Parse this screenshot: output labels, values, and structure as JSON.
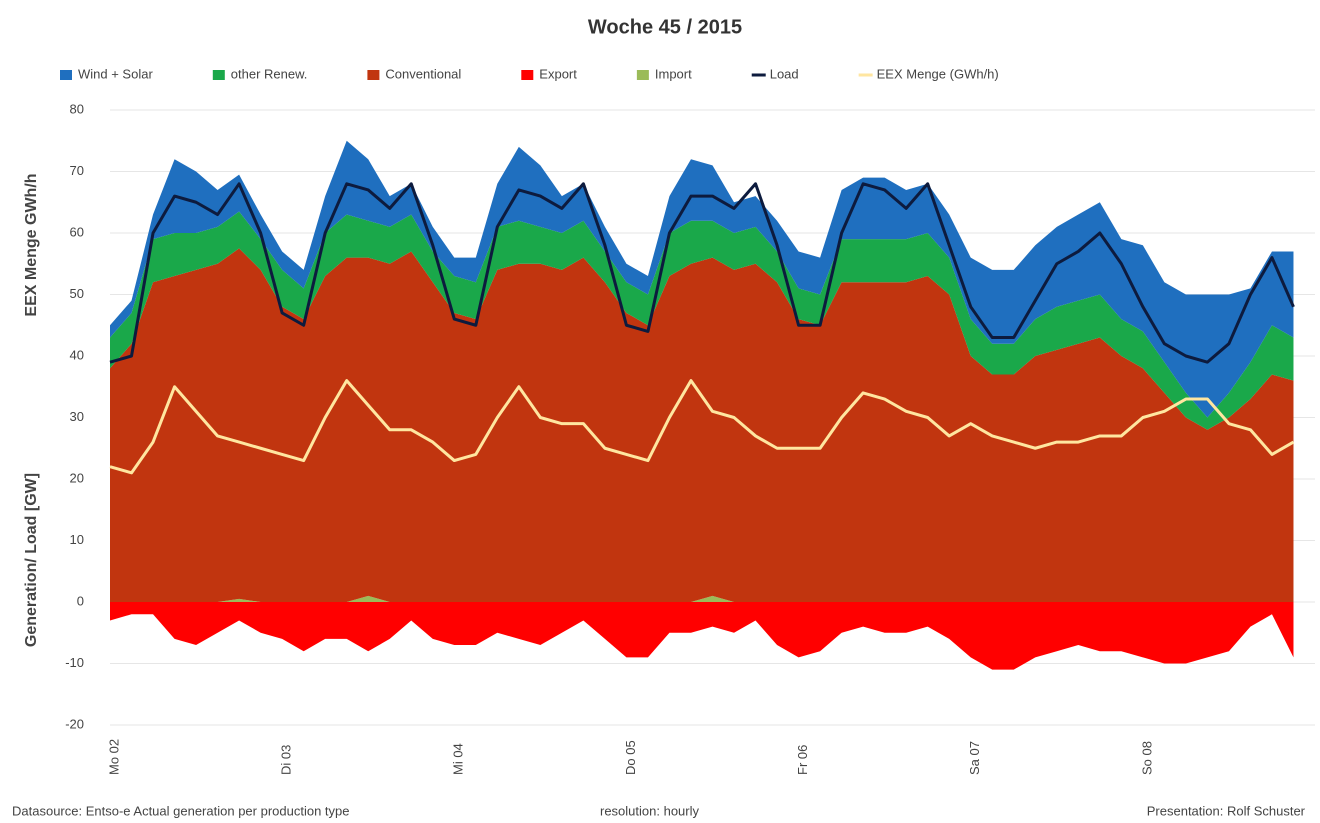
{
  "chart_data": {
    "type": "area",
    "title": "Woche 45 / 2015",
    "ylabel": "Generation/ Load   [GW]",
    "ylabel_eex": "EEX Menge GWh/h",
    "source": "Datasource: Entso-e  Actual generation per production type",
    "resolution": "resolution: hourly",
    "credit": "Presentation:  Rolf Schuster",
    "ylim": [
      -20,
      80
    ],
    "yticks": [
      -20,
      -10,
      0,
      10,
      20,
      30,
      40,
      50,
      60,
      70,
      80
    ],
    "grid": true,
    "categories": [
      "Mo 02",
      null,
      null,
      null,
      null,
      null,
      null,
      null,
      "Di 03",
      null,
      null,
      null,
      null,
      null,
      null,
      null,
      "Mi 04",
      null,
      null,
      null,
      null,
      null,
      null,
      null,
      "Do 05",
      null,
      null,
      null,
      null,
      null,
      null,
      null,
      "Fr 06",
      null,
      null,
      null,
      null,
      null,
      null,
      null,
      "Sa 07",
      null,
      null,
      null,
      null,
      null,
      null,
      null,
      "So 08",
      null,
      null,
      null,
      null,
      null,
      null,
      null
    ],
    "series": [
      {
        "name": "Wind + Solar",
        "type": "area",
        "color": "#1f6fbf",
        "values": [
          2,
          2,
          4,
          12,
          10,
          6,
          6,
          4,
          3,
          3,
          6,
          12,
          10,
          5,
          5,
          4,
          3,
          4,
          7,
          12,
          10,
          6,
          6,
          4,
          3,
          3,
          6,
          10,
          9,
          5,
          5,
          5,
          6,
          6,
          8,
          10,
          10,
          8,
          8,
          7,
          10,
          12,
          12,
          12,
          13,
          14,
          15,
          13,
          14,
          13,
          16,
          20,
          16,
          12,
          12,
          14
        ]
      },
      {
        "name": "other Renew.",
        "type": "area",
        "color": "#1aa84a",
        "values": [
          5,
          5,
          7,
          7,
          6,
          6,
          6,
          5,
          6,
          5,
          7,
          7,
          6,
          6,
          6,
          5,
          6,
          6,
          7,
          7,
          6,
          6,
          6,
          5,
          5,
          5,
          7,
          7,
          6,
          6,
          6,
          5,
          5,
          5,
          7,
          7,
          7,
          7,
          7,
          6,
          6,
          5,
          5,
          6,
          7,
          7,
          7,
          6,
          6,
          5,
          4,
          2,
          4,
          6,
          8,
          7
        ]
      },
      {
        "name": "Conventional",
        "type": "area",
        "color": "#c1350f",
        "values": [
          38,
          42,
          52,
          53,
          54,
          55,
          57,
          54,
          48,
          46,
          53,
          56,
          55,
          55,
          57,
          52,
          47,
          46,
          54,
          55,
          55,
          54,
          56,
          52,
          47,
          45,
          53,
          55,
          55,
          54,
          55,
          52,
          46,
          45,
          52,
          52,
          52,
          52,
          53,
          50,
          40,
          37,
          37,
          40,
          41,
          42,
          43,
          40,
          38,
          34,
          30,
          28,
          30,
          33,
          37,
          36
        ]
      },
      {
        "name": "Export",
        "type": "area",
        "color": "#ff0000",
        "values": [
          -3,
          -2,
          -2,
          -6,
          -7,
          -5,
          -3,
          -5,
          -6,
          -8,
          -6,
          -6,
          -8,
          -6,
          -3,
          -6,
          -7,
          -7,
          -5,
          -6,
          -7,
          -5,
          -3,
          -6,
          -9,
          -9,
          -5,
          -5,
          -4,
          -5,
          -3,
          -7,
          -9,
          -8,
          -5,
          -4,
          -5,
          -5,
          -4,
          -6,
          -9,
          -11,
          -11,
          -9,
          -8,
          -7,
          -8,
          -8,
          -9,
          -10,
          -10,
          -9,
          -8,
          -4,
          -2,
          -9
        ]
      },
      {
        "name": "Import",
        "type": "area",
        "color": "#9bbb59",
        "values": [
          0,
          0,
          0,
          0,
          0,
          0,
          0.5,
          0,
          0,
          0,
          0,
          0,
          1,
          0,
          0,
          0,
          0,
          0,
          0,
          0,
          0,
          0,
          0,
          0,
          0,
          0,
          0,
          0,
          1,
          0,
          0,
          0,
          0,
          0,
          0,
          0,
          0,
          0,
          0,
          0,
          0,
          0,
          0,
          0,
          0,
          0,
          0,
          0,
          0,
          0,
          0,
          0,
          0,
          0,
          0,
          0
        ]
      },
      {
        "name": "Load",
        "type": "line",
        "color": "#0d1b3e",
        "values": [
          39,
          40,
          60,
          66,
          65,
          63,
          68,
          60,
          47,
          45,
          60,
          68,
          67,
          64,
          68,
          58,
          46,
          45,
          61,
          67,
          66,
          64,
          68,
          58,
          45,
          44,
          60,
          66,
          66,
          64,
          68,
          58,
          45,
          45,
          60,
          68,
          67,
          64,
          68,
          58,
          48,
          43,
          43,
          49,
          55,
          57,
          60,
          55,
          48,
          42,
          40,
          39,
          42,
          50,
          56,
          48
        ]
      },
      {
        "name": "EEX Menge (GWh/h)",
        "type": "line",
        "color": "#ffe6a0",
        "values": [
          22,
          21,
          26,
          35,
          31,
          27,
          26,
          25,
          24,
          23,
          30,
          36,
          32,
          28,
          28,
          26,
          23,
          24,
          30,
          35,
          30,
          29,
          29,
          25,
          24,
          23,
          30,
          36,
          31,
          30,
          27,
          25,
          25,
          25,
          30,
          34,
          33,
          31,
          30,
          27,
          29,
          27,
          26,
          25,
          26,
          26,
          27,
          27,
          30,
          31,
          33,
          33,
          29,
          28,
          24,
          26
        ]
      }
    ]
  }
}
